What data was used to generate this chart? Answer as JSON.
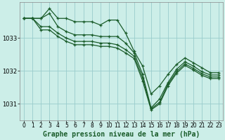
{
  "background_color": "#cceee8",
  "grid_color": "#99cccc",
  "line_color": "#1a5c2a",
  "marker_color": "#1a5c2a",
  "title": "Graphe pression niveau de la mer (hPa)",
  "title_fontsize": 7,
  "tick_fontsize": 5.5,
  "xlim": [
    -0.5,
    23.5
  ],
  "ylim": [
    1030.5,
    1034.1
  ],
  "yticks": [
    1031,
    1032,
    1033
  ],
  "xticks": [
    0,
    1,
    2,
    3,
    4,
    5,
    6,
    7,
    8,
    9,
    10,
    11,
    12,
    13,
    14,
    15,
    16,
    17,
    18,
    19,
    20,
    21,
    22,
    23
  ],
  "series": [
    [
      1033.6,
      1033.6,
      1033.6,
      1033.9,
      1033.6,
      1033.6,
      1033.5,
      1033.5,
      1033.5,
      1033.4,
      1033.55,
      1033.55,
      1033.15,
      1032.6,
      1032.15,
      1031.3,
      1031.55,
      1031.9,
      1032.2,
      1032.4,
      1032.25,
      1032.1,
      1031.95,
      1031.95
    ],
    [
      1033.6,
      1033.6,
      1033.6,
      1033.75,
      1033.35,
      1033.2,
      1033.1,
      1033.1,
      1033.1,
      1033.05,
      1033.05,
      1033.05,
      1032.85,
      1032.55,
      1031.9,
      1030.88,
      1031.15,
      1031.65,
      1032.05,
      1032.28,
      1032.15,
      1031.98,
      1031.88,
      1031.88
    ],
    [
      1033.6,
      1033.6,
      1033.35,
      1033.35,
      1033.15,
      1033.0,
      1032.9,
      1032.9,
      1032.9,
      1032.85,
      1032.85,
      1032.8,
      1032.65,
      1032.45,
      1031.8,
      1030.85,
      1031.05,
      1031.6,
      1031.98,
      1032.22,
      1032.08,
      1031.92,
      1031.82,
      1031.82
    ],
    [
      1033.6,
      1033.6,
      1033.25,
      1033.25,
      1033.05,
      1032.9,
      1032.8,
      1032.8,
      1032.8,
      1032.75,
      1032.75,
      1032.7,
      1032.55,
      1032.38,
      1031.7,
      1030.82,
      1031.0,
      1031.55,
      1031.93,
      1032.17,
      1032.03,
      1031.87,
      1031.77,
      1031.77
    ]
  ]
}
